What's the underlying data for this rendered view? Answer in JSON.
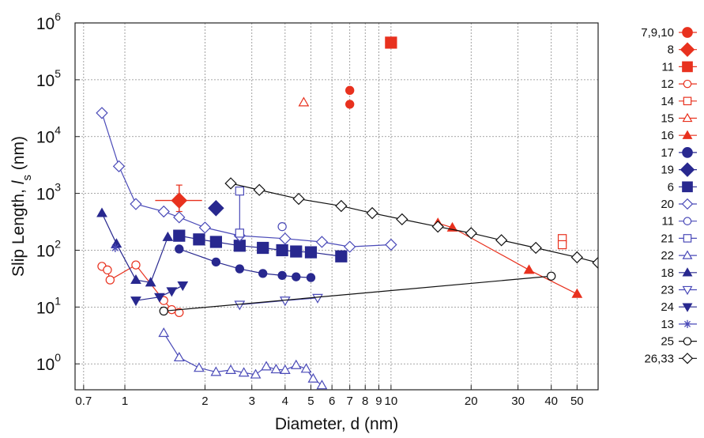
{
  "chart_data": {
    "type": "scatter",
    "xlabel": "Diameter, d (nm)",
    "ylabel": "Slip Length,",
    "ylabel_symbol": "l",
    "ylabel_subscript": "s",
    "ylabel_unit": " (nm)",
    "x_scale": "log",
    "y_scale": "log",
    "xlim": [
      0.65,
      60
    ],
    "ylim": [
      0.35,
      1000000
    ],
    "grid": true,
    "legend_position": "right",
    "x_ticks": [
      {
        "value": 0.7,
        "label": "0.7"
      },
      {
        "value": 1,
        "label": "1"
      },
      {
        "value": 2,
        "label": "2"
      },
      {
        "value": 3,
        "label": "3"
      },
      {
        "value": 4,
        "label": "4"
      },
      {
        "value": 5,
        "label": "5"
      },
      {
        "value": 6,
        "label": "6"
      },
      {
        "value": 7,
        "label": "7"
      },
      {
        "value": 8,
        "label": "8"
      },
      {
        "value": 9,
        "label": "9"
      },
      {
        "value": 10,
        "label": "10"
      },
      {
        "value": 20,
        "label": "20"
      },
      {
        "value": 30,
        "label": "30"
      },
      {
        "value": 40,
        "label": "40"
      },
      {
        "value": 50,
        "label": "50"
      }
    ],
    "x_grid": [
      0.7,
      1,
      2,
      3,
      4,
      5,
      6,
      7,
      8,
      9,
      10,
      20,
      30,
      40,
      50
    ],
    "y_ticks": [
      {
        "value": 1,
        "base": "10",
        "exp": "0"
      },
      {
        "value": 10,
        "base": "10",
        "exp": "1"
      },
      {
        "value": 100,
        "base": "10",
        "exp": "2"
      },
      {
        "value": 1000,
        "base": "10",
        "exp": "3"
      },
      {
        "value": 10000,
        "base": "10",
        "exp": "4"
      },
      {
        "value": 100000,
        "base": "10",
        "exp": "5"
      },
      {
        "value": 1000000,
        "base": "10",
        "exp": "6"
      }
    ],
    "series": [
      {
        "name": "7,9,10",
        "color": "#e8311e",
        "marker": "circle",
        "filled": true,
        "line": false,
        "points": [
          [
            7,
            65000
          ],
          [
            7,
            37000
          ]
        ]
      },
      {
        "name": "8",
        "color": "#e8311e",
        "marker": "diamond",
        "filled": true,
        "line": false,
        "points": [
          [
            1.6,
            750
          ]
        ],
        "xerr": [
          [
            1.3,
            1.95
          ]
        ],
        "yerr": [
          [
            480,
            1400
          ]
        ]
      },
      {
        "name": "11",
        "color": "#e8311e",
        "marker": "square",
        "filled": true,
        "line": false,
        "points": [
          [
            10,
            450000
          ]
        ]
      },
      {
        "name": "12",
        "color": "#e8311e",
        "marker": "circle",
        "filled": false,
        "line": true,
        "points": [
          [
            0.82,
            52
          ],
          [
            0.86,
            45
          ],
          [
            0.88,
            30
          ],
          [
            1.1,
            55
          ],
          [
            1.4,
            13
          ],
          [
            1.5,
            9
          ],
          [
            1.6,
            8
          ]
        ]
      },
      {
        "name": "14",
        "color": "#e8311e",
        "marker": "square",
        "filled": false,
        "line": false,
        "points": [
          [
            44,
            160
          ],
          [
            44,
            125
          ]
        ]
      },
      {
        "name": "15",
        "color": "#e8311e",
        "marker": "triangle",
        "filled": false,
        "line": false,
        "points": [
          [
            4.7,
            40000
          ]
        ]
      },
      {
        "name": "16",
        "color": "#e8311e",
        "marker": "triangle",
        "filled": true,
        "line": true,
        "points": [
          [
            15,
            300
          ],
          [
            17,
            250
          ],
          [
            33,
            45
          ],
          [
            50,
            17
          ]
        ]
      },
      {
        "name": "17",
        "color": "#28288f",
        "marker": "circle",
        "filled": true,
        "line": true,
        "points": [
          [
            1.6,
            105
          ],
          [
            2.2,
            62
          ],
          [
            2.7,
            47
          ],
          [
            3.3,
            39
          ],
          [
            3.9,
            36
          ],
          [
            4.4,
            34
          ],
          [
            5,
            33
          ]
        ]
      },
      {
        "name": "19",
        "color": "#28288f",
        "marker": "diamond",
        "filled": true,
        "line": false,
        "points": [
          [
            2.2,
            550
          ]
        ]
      },
      {
        "name": "6",
        "color": "#28288f",
        "marker": "square",
        "filled": true,
        "line": true,
        "points": [
          [
            1.6,
            180
          ],
          [
            1.9,
            155
          ],
          [
            2.2,
            140
          ],
          [
            2.7,
            120
          ],
          [
            3.3,
            110
          ],
          [
            3.9,
            100
          ],
          [
            4.4,
            95
          ],
          [
            5,
            92
          ],
          [
            6.5,
            78
          ]
        ]
      },
      {
        "name": "20",
        "color": "#4a4ab8",
        "marker": "diamond",
        "filled": false,
        "line": true,
        "points": [
          [
            0.82,
            26000
          ],
          [
            0.95,
            3000
          ],
          [
            1.1,
            650
          ],
          [
            1.4,
            480
          ],
          [
            1.6,
            380
          ],
          [
            2,
            250
          ],
          [
            2.7,
            180
          ],
          [
            4,
            160
          ],
          [
            5.5,
            140
          ],
          [
            7,
            115
          ],
          [
            10,
            125
          ]
        ]
      },
      {
        "name": "11",
        "color": "#4a4ab8",
        "marker": "circle",
        "filled": false,
        "line": false,
        "points": [
          [
            3.9,
            260
          ]
        ]
      },
      {
        "name": "21",
        "color": "#4a4ab8",
        "marker": "square",
        "filled": false,
        "line": true,
        "points": [
          [
            2.7,
            1100
          ],
          [
            2.7,
            200
          ]
        ]
      },
      {
        "name": "22",
        "color": "#4a4ab8",
        "marker": "triangle",
        "filled": false,
        "line": true,
        "points": [
          [
            1.4,
            3.5
          ],
          [
            1.6,
            1.3
          ],
          [
            1.9,
            0.85
          ],
          [
            2.2,
            0.72
          ],
          [
            2.5,
            0.78
          ],
          [
            2.8,
            0.7
          ],
          [
            3.1,
            0.65
          ],
          [
            3.4,
            0.9
          ],
          [
            3.7,
            0.8
          ],
          [
            4,
            0.78
          ],
          [
            4.4,
            0.95
          ],
          [
            4.8,
            0.82
          ],
          [
            5.1,
            0.55
          ],
          [
            5.5,
            0.42
          ]
        ]
      },
      {
        "name": "18",
        "color": "#28288f",
        "marker": "triangle",
        "filled": true,
        "line": true,
        "points": [
          [
            0.82,
            450
          ],
          [
            0.93,
            130
          ],
          [
            1.1,
            30
          ],
          [
            1.25,
            27
          ],
          [
            1.45,
            170
          ]
        ]
      },
      {
        "name": "23",
        "color": "#4a4ab8",
        "marker": "triangle-down",
        "filled": false,
        "line": true,
        "points": [
          [
            2.7,
            11
          ],
          [
            4,
            13
          ],
          [
            5.3,
            14.5
          ]
        ]
      },
      {
        "name": "24",
        "color": "#28288f",
        "marker": "triangle-down",
        "filled": true,
        "line": true,
        "points": [
          [
            1.1,
            13
          ],
          [
            1.35,
            15
          ],
          [
            1.5,
            19
          ],
          [
            1.65,
            24
          ]
        ]
      },
      {
        "name": "13",
        "color": "#4a4ab8",
        "marker": "star",
        "filled": false,
        "line": false,
        "points": [
          [
            0.92,
            110
          ]
        ]
      },
      {
        "name": "25",
        "color": "#111111",
        "marker": "circle",
        "filled": false,
        "line": true,
        "points": [
          [
            1.4,
            8.5
          ],
          [
            40,
            35
          ]
        ]
      },
      {
        "name": "26,33",
        "color": "#111111",
        "marker": "diamond",
        "filled": false,
        "line": true,
        "points": [
          [
            2.5,
            1500
          ],
          [
            3.2,
            1150
          ],
          [
            4.5,
            800
          ],
          [
            6.5,
            600
          ],
          [
            8.5,
            450
          ],
          [
            11,
            350
          ],
          [
            15,
            260
          ],
          [
            20,
            200
          ],
          [
            26,
            150
          ],
          [
            35,
            110
          ],
          [
            50,
            75
          ],
          [
            60,
            60
          ]
        ]
      }
    ]
  }
}
